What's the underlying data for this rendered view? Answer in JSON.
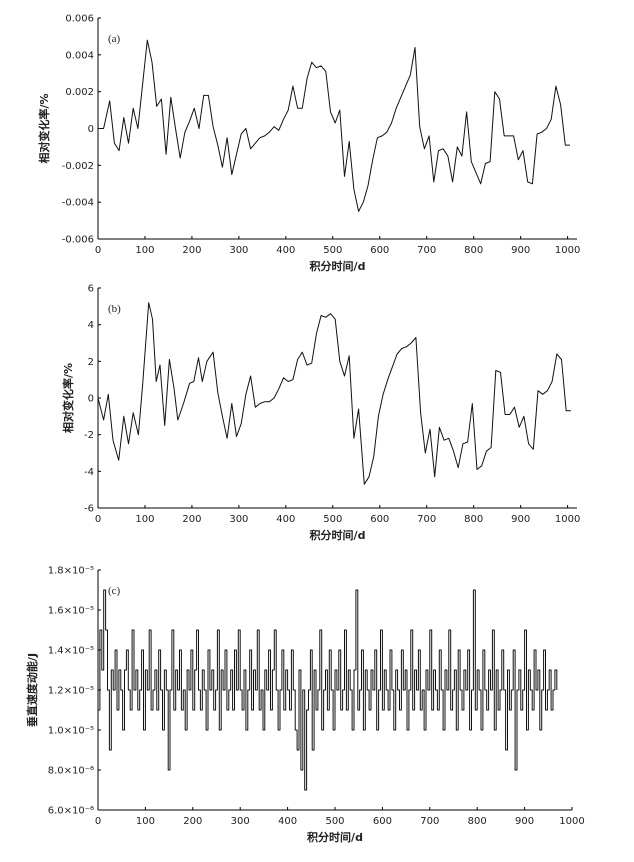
{
  "chart_data": [
    {
      "type": "line",
      "panel_label": "(a)",
      "xlabel": "积分时间/d",
      "ylabel": "相对变化率/%",
      "xlim": [
        0,
        1020
      ],
      "ylim": [
        -0.006,
        0.006
      ],
      "xticks": [
        0,
        100,
        200,
        300,
        400,
        500,
        600,
        700,
        800,
        900,
        1000
      ],
      "xtick_labels": [
        "0",
        "100",
        "200",
        "300",
        "400",
        "500",
        "600",
        "700",
        "800",
        "900",
        "1000"
      ],
      "yticks": [
        -0.006,
        -0.004,
        -0.002,
        0,
        0.002,
        0.004,
        0.006
      ],
      "ytick_labels": [
        "-0.006",
        "-0.004",
        "-0.002",
        "0",
        "0.002",
        "0.004",
        "0.006"
      ],
      "x": [
        0,
        12,
        25,
        35,
        45,
        55,
        65,
        75,
        85,
        95,
        105,
        115,
        125,
        135,
        145,
        155,
        165,
        175,
        185,
        195,
        205,
        215,
        225,
        235,
        245,
        255,
        265,
        275,
        285,
        295,
        305,
        315,
        325,
        335,
        345,
        355,
        365,
        375,
        385,
        395,
        405,
        415,
        425,
        435,
        445,
        455,
        465,
        475,
        485,
        495,
        505,
        515,
        525,
        535,
        545,
        555,
        565,
        575,
        585,
        595,
        605,
        615,
        625,
        635,
        645,
        655,
        665,
        675,
        685,
        695,
        705,
        715,
        725,
        735,
        745,
        755,
        765,
        775,
        785,
        795,
        805,
        815,
        825,
        835,
        845,
        855,
        865,
        875,
        885,
        895,
        905,
        915,
        925,
        935,
        945,
        955,
        965,
        975,
        985,
        995,
        1005
      ],
      "series": [
        {
          "name": "(a)",
          "values": [
            0.0,
            0.0,
            0.0015,
            -0.0008,
            -0.0012,
            0.0006,
            -0.0008,
            0.0011,
            0.0,
            0.0024,
            0.0048,
            0.0036,
            0.0012,
            0.0016,
            -0.0014,
            0.0017,
            0.0,
            -0.0016,
            -0.0002,
            0.0004,
            0.0011,
            0.0,
            0.0018,
            0.0018,
            0.0001,
            -0.0009,
            -0.0021,
            -0.0005,
            -0.0025,
            -0.0014,
            -0.0003,
            0.0,
            -0.0011,
            -0.0008,
            -0.0005,
            -0.0004,
            -0.0002,
            0.0001,
            -0.0001,
            0.0005,
            0.001,
            0.0023,
            0.0011,
            0.0011,
            0.0027,
            0.0036,
            0.0033,
            0.0034,
            0.0031,
            0.0009,
            0.0003,
            0.001,
            -0.0026,
            -0.0007,
            -0.0033,
            -0.0045,
            -0.004,
            -0.0031,
            -0.0017,
            -0.0005,
            -0.0004,
            -0.0002,
            0.0003,
            0.0011,
            0.0017,
            0.0023,
            0.0029,
            0.0044,
            0.0001,
            -0.0011,
            -0.0004,
            -0.0029,
            -0.0012,
            -0.0011,
            -0.0015,
            -0.0029,
            -0.001,
            -0.0015,
            0.0009,
            -0.0018,
            -0.0024,
            -0.003,
            -0.0019,
            -0.0018,
            0.002,
            0.0016,
            -0.0004,
            -0.0004,
            -0.0004,
            -0.0017,
            -0.0012,
            -0.0029,
            -0.003,
            -0.0003,
            -0.0002,
            0.0,
            0.0005,
            0.0023,
            0.0013,
            -0.0009,
            -0.0009
          ]
        }
      ]
    },
    {
      "type": "line",
      "panel_label": "(b)",
      "xlabel": "积分时间/d",
      "ylabel": "相对变化率/%",
      "xlim": [
        0,
        1020
      ],
      "ylim": [
        -6,
        6
      ],
      "xticks": [
        0,
        100,
        200,
        300,
        400,
        500,
        600,
        700,
        800,
        900,
        1000
      ],
      "xtick_labels": [
        "0",
        "100",
        "200",
        "300",
        "400",
        "500",
        "600",
        "700",
        "800",
        "900",
        "1000"
      ],
      "yticks": [
        -6,
        -4,
        -2,
        0,
        2,
        4,
        6
      ],
      "ytick_labels": [
        "-6",
        "-4",
        "-2",
        "0",
        "2",
        "4",
        "6"
      ],
      "x": [
        0,
        12,
        22,
        32,
        44,
        55,
        65,
        75,
        86,
        95,
        108,
        116,
        124,
        132,
        142,
        152,
        162,
        170,
        182,
        195,
        204,
        214,
        222,
        232,
        245,
        255,
        265,
        275,
        285,
        295,
        305,
        315,
        325,
        335,
        345,
        355,
        365,
        375,
        385,
        395,
        405,
        415,
        425,
        435,
        445,
        455,
        465,
        475,
        485,
        495,
        505,
        515,
        525,
        535,
        545,
        555,
        567,
        577,
        587,
        597,
        607,
        617,
        627,
        637,
        647,
        657,
        667,
        677,
        687,
        697,
        707,
        717,
        727,
        737,
        747,
        757,
        767,
        777,
        787,
        797,
        807,
        817,
        827,
        837,
        847,
        857,
        867,
        877,
        887,
        897,
        907,
        917,
        927,
        937,
        947,
        957,
        967,
        977,
        987,
        997,
        1007
      ],
      "series": [
        {
          "name": "(b)",
          "values": [
            0.0,
            -1.2,
            0.2,
            -2.3,
            -3.4,
            -1.0,
            -2.5,
            -0.8,
            -2.0,
            0.7,
            5.2,
            4.3,
            0.9,
            1.8,
            -1.5,
            2.1,
            0.5,
            -1.2,
            -0.3,
            0.8,
            0.9,
            2.2,
            0.9,
            2.0,
            2.5,
            0.3,
            -1.0,
            -2.2,
            -0.3,
            -2.1,
            -1.4,
            0.2,
            1.2,
            -0.5,
            -0.3,
            -0.2,
            -0.2,
            0.0,
            0.5,
            1.1,
            0.9,
            1.0,
            2.1,
            2.5,
            1.8,
            1.9,
            3.5,
            4.5,
            4.4,
            4.6,
            4.3,
            2.0,
            1.2,
            2.3,
            -2.2,
            -0.6,
            -4.7,
            -4.3,
            -3.2,
            -1.0,
            0.2,
            1.0,
            1.7,
            2.4,
            2.7,
            2.8,
            3.0,
            3.3,
            -0.8,
            -3.0,
            -1.7,
            -4.3,
            -1.6,
            -2.3,
            -2.2,
            -2.9,
            -3.8,
            -2.5,
            -2.4,
            -0.3,
            -3.9,
            -3.7,
            -2.9,
            -2.7,
            1.5,
            1.4,
            -0.9,
            -0.9,
            -0.5,
            -1.6,
            -1.0,
            -2.5,
            -2.8,
            0.4,
            0.2,
            0.4,
            0.9,
            2.4,
            2.1,
            -0.7,
            -0.7
          ]
        }
      ]
    },
    {
      "type": "line",
      "panel_label": "(c)",
      "xlabel": "积分时间/d",
      "ylabel": "垂直速度动能/J",
      "xlim": [
        0,
        1000
      ],
      "ylim": [
        6e-06,
        1.8e-05
      ],
      "xticks": [
        0,
        100,
        200,
        300,
        400,
        500,
        600,
        700,
        800,
        900,
        1000
      ],
      "xtick_labels": [
        "0",
        "100",
        "200",
        "300",
        "400",
        "500",
        "600",
        "700",
        "800",
        "900",
        "1000"
      ],
      "yticks": [
        6e-06,
        8e-06,
        1e-05,
        1.2e-05,
        1.4e-05,
        1.6e-05,
        1.8e-05
      ],
      "ytick_labels": [
        "6.0×10⁻⁶",
        "8.0×10⁻⁶",
        "1.0×10⁻⁵",
        "1.2×10⁻⁵",
        "1.4×10⁻⁵",
        "1.6×10⁻⁵",
        "1.8×10⁻⁵"
      ],
      "x_start": 0,
      "x_step": 4,
      "series": [
        {
          "name": "(c)",
          "values": [
            1.1e-05,
            1.5e-05,
            1.3e-05,
            1.7e-05,
            1.5e-05,
            1.2e-05,
            9e-06,
            1.3e-05,
            1.2e-05,
            1.4e-05,
            1.1e-05,
            1.3e-05,
            1.2e-05,
            1e-05,
            1.3e-05,
            1.4e-05,
            1.2e-05,
            1.1e-05,
            1.5e-05,
            1.2e-05,
            1.3e-05,
            1.1e-05,
            1.2e-05,
            1.4e-05,
            1e-05,
            1.3e-05,
            1.2e-05,
            1.5e-05,
            1.1e-05,
            1.2e-05,
            1.3e-05,
            1.1e-05,
            1.4e-05,
            1.2e-05,
            1e-05,
            1.3e-05,
            1.2e-05,
            8e-06,
            1.2e-05,
            1.5e-05,
            1.1e-05,
            1.3e-05,
            1.2e-05,
            1.4e-05,
            1.1e-05,
            1.2e-05,
            1e-05,
            1.3e-05,
            1.2e-05,
            1.4e-05,
            1.1e-05,
            1.3e-05,
            1.5e-05,
            1.2e-05,
            1.1e-05,
            1.3e-05,
            1.2e-05,
            1e-05,
            1.4e-05,
            1.2e-05,
            1.3e-05,
            1.1e-05,
            1.2e-05,
            1.5e-05,
            1e-05,
            1.3e-05,
            1.2e-05,
            1.4e-05,
            1.1e-05,
            1.2e-05,
            1.3e-05,
            1.1e-05,
            1.4e-05,
            1.2e-05,
            1.5e-05,
            1.2e-05,
            1.1e-05,
            1.3e-05,
            1e-05,
            1.2e-05,
            1.4e-05,
            1.1e-05,
            1.3e-05,
            1.2e-05,
            1.5e-05,
            1.1e-05,
            1.2e-05,
            1e-05,
            1.3e-05,
            1.2e-05,
            1.4e-05,
            1.1e-05,
            1.3e-05,
            1.5e-05,
            1.2e-05,
            1e-05,
            1.2e-05,
            1.4e-05,
            1.1e-05,
            1.3e-05,
            1.2e-05,
            1.1e-05,
            1.4e-05,
            1.2e-05,
            1e-05,
            9e-06,
            1.3e-05,
            8e-06,
            1.2e-05,
            7e-06,
            1.1e-05,
            1.2e-05,
            1.4e-05,
            9e-06,
            1.3e-05,
            1.1e-05,
            1.2e-05,
            1.5e-05,
            1e-05,
            1.2e-05,
            1.3e-05,
            1.1e-05,
            1.4e-05,
            1.2e-05,
            1e-05,
            1.3e-05,
            1.2e-05,
            1.4e-05,
            1.1e-05,
            1.2e-05,
            1.5e-05,
            1.1e-05,
            1.3e-05,
            1.2e-05,
            1e-05,
            1.3e-05,
            1.7e-05,
            1.1e-05,
            1.2e-05,
            1.4e-05,
            1e-05,
            1.3e-05,
            1.2e-05,
            1.1e-05,
            1.3e-05,
            1.2e-05,
            1.4e-05,
            1e-05,
            1.2e-05,
            1.5e-05,
            1.1e-05,
            1.3e-05,
            1.2e-05,
            1.1e-05,
            1.4e-05,
            1.2e-05,
            1e-05,
            1.3e-05,
            1.2e-05,
            1.1e-05,
            1.4e-05,
            1.2e-05,
            1.3e-05,
            1e-05,
            1.2e-05,
            1.5e-05,
            1.1e-05,
            1.3e-05,
            1.2e-05,
            1.4e-05,
            1.1e-05,
            1.2e-05,
            1e-05,
            1.3e-05,
            1.2e-05,
            1.5e-05,
            1.1e-05,
            1.3e-05,
            1.2e-05,
            1.1e-05,
            1.4e-05,
            1.2e-05,
            1e-05,
            1.3e-05,
            1.2e-05,
            1.5e-05,
            1.1e-05,
            1.2e-05,
            1.3e-05,
            1e-05,
            1.4e-05,
            1.2e-05,
            1.1e-05,
            1.3e-05,
            1.2e-05,
            1.4e-05,
            1e-05,
            1.2e-05,
            1.7e-05,
            1.1e-05,
            1.3e-05,
            1.2e-05,
            1e-05,
            1.4e-05,
            1.2e-05,
            1.1e-05,
            1.3e-05,
            1.2e-05,
            1.5e-05,
            1e-05,
            1.3e-05,
            1.1e-05,
            1.2e-05,
            1.4e-05,
            1.2e-05,
            9e-06,
            1.3e-05,
            1.1e-05,
            1.2e-05,
            1.4e-05,
            8e-06,
            1.2e-05,
            1.3e-05,
            1.1e-05,
            1.2e-05,
            1.5e-05,
            1e-05,
            1.3e-05,
            1.2e-05,
            1.1e-05,
            1.4e-05,
            1.2e-05,
            1.3e-05,
            1e-05,
            1.2e-05,
            1.4e-05,
            1.1e-05,
            1.2e-05,
            1.3e-05,
            1.1e-05,
            1.2e-05,
            1.3e-05,
            1.2e-05
          ]
        }
      ]
    }
  ]
}
